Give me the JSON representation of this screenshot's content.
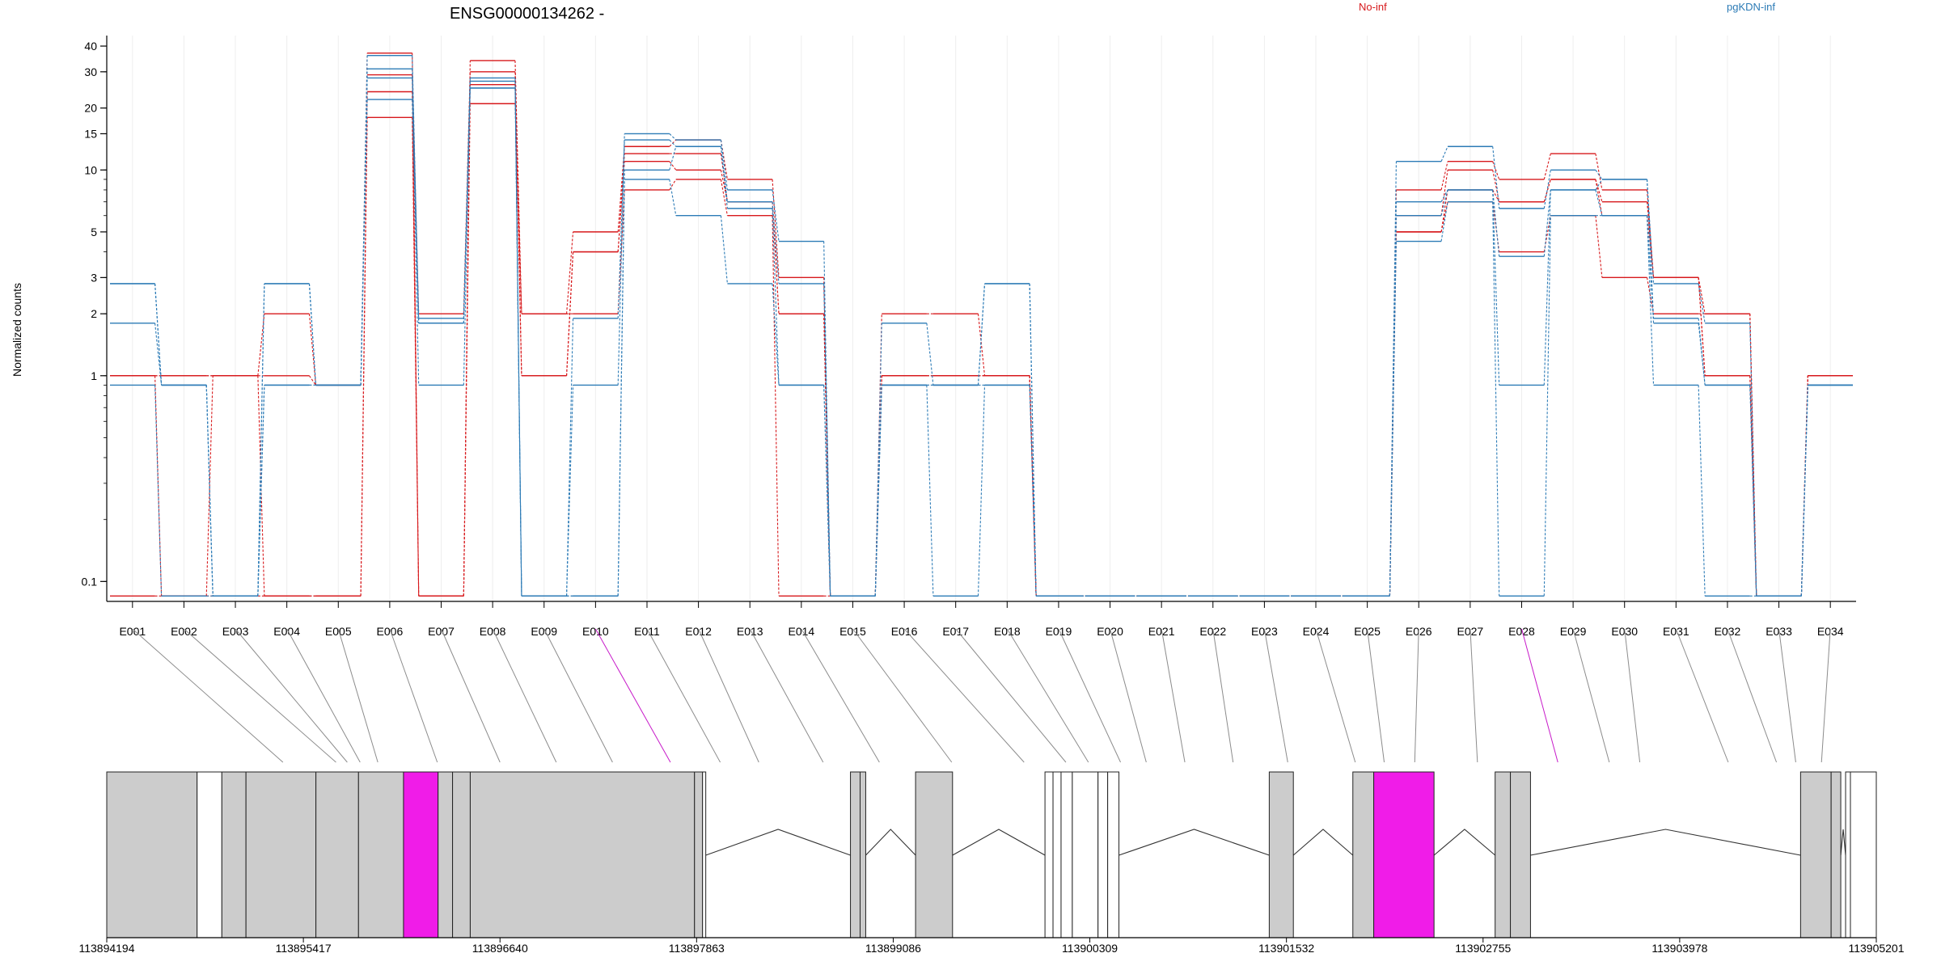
{
  "chart_data": {
    "type": "line",
    "title": "ENSG00000134262 -",
    "ylabel": "Normalized counts",
    "yscale": "log",
    "ylim": [
      0.08,
      45
    ],
    "yticks": [
      0.1,
      1,
      2,
      3,
      5,
      10,
      15,
      20,
      30,
      40
    ],
    "ytick_labels": [
      "0.1",
      "1",
      "2",
      "3",
      "5",
      "10",
      "15",
      "20",
      "30",
      "40"
    ],
    "grid": "vertical",
    "legend": [
      {
        "name": "No-inf",
        "color": "#d7191c"
      },
      {
        "name": "pgKDN-inf",
        "color": "#2c7bb6"
      }
    ],
    "categories": [
      "E001",
      "E002",
      "E003",
      "E004",
      "E005",
      "E006",
      "E007",
      "E008",
      "E009",
      "E010",
      "E011",
      "E012",
      "E013",
      "E014",
      "E015",
      "E016",
      "E017",
      "E018",
      "E019",
      "E020",
      "E021",
      "E022",
      "E023",
      "E024",
      "E025",
      "E026",
      "E027",
      "E028",
      "E029",
      "E030",
      "E031",
      "E032",
      "E033",
      "E034"
    ],
    "series": [
      {
        "group": "No-inf",
        "color": "#d7191c",
        "values": [
          1,
          1,
          1,
          2,
          0.9,
          37,
          0.085,
          34,
          2,
          5,
          13,
          14,
          9,
          3,
          0.085,
          2,
          2,
          1,
          0.085,
          0.085,
          0.085,
          0.085,
          0.085,
          0.085,
          0.085,
          8,
          11,
          9,
          12,
          8,
          3,
          2,
          0.085,
          1
        ]
      },
      {
        "group": "No-inf",
        "color": "#d7191c",
        "values": [
          1,
          1,
          1,
          1,
          0.9,
          29,
          2,
          30,
          1,
          4,
          12,
          12,
          7,
          2,
          0.085,
          1,
          1,
          1,
          0.085,
          0.085,
          0.085,
          0.085,
          0.085,
          0.085,
          0.085,
          6,
          10,
          7,
          9,
          7,
          3,
          1,
          0.085,
          1
        ]
      },
      {
        "group": "No-inf",
        "color": "#d7191c",
        "values": [
          0.085,
          0.085,
          1,
          0.085,
          0.085,
          24,
          0.085,
          26,
          1,
          4,
          11,
          10,
          7,
          2,
          0.085,
          1,
          1,
          1,
          0.085,
          0.085,
          0.085,
          0.085,
          0.085,
          0.085,
          0.085,
          5,
          8,
          7,
          9,
          6,
          3,
          1,
          0.085,
          1
        ]
      },
      {
        "group": "No-inf",
        "color": "#d7191c",
        "values": [
          1,
          0.085,
          0.085,
          0.085,
          0.085,
          18,
          0.085,
          21,
          2,
          2,
          8,
          9,
          6,
          0.085,
          0.085,
          1,
          1,
          1,
          0.085,
          0.085,
          0.085,
          0.085,
          0.085,
          0.085,
          0.085,
          5,
          7,
          4,
          6,
          3,
          2,
          2,
          0.085,
          1
        ]
      },
      {
        "group": "pgKDN-inf",
        "color": "#2c7bb6",
        "values": [
          2.8,
          0.9,
          0.085,
          2.8,
          0.9,
          36,
          1.8,
          28,
          0.085,
          0.9,
          15,
          14,
          8,
          4.5,
          0.085,
          1.8,
          0.9,
          2.8,
          0.085,
          0.085,
          0.085,
          0.085,
          0.085,
          0.085,
          0.085,
          11,
          13,
          6.5,
          10,
          9,
          2.8,
          1.8,
          0.085,
          0.9
        ]
      },
      {
        "group": "pgKDN-inf",
        "color": "#2c7bb6",
        "values": [
          2.8,
          0.9,
          0.085,
          2.8,
          0.9,
          31,
          1.9,
          27,
          0.085,
          1.9,
          14,
          13,
          7,
          2.8,
          0.085,
          0.9,
          0.9,
          2.8,
          0.085,
          0.085,
          0.085,
          0.085,
          0.085,
          0.085,
          0.085,
          7,
          8,
          3.8,
          8,
          9,
          1.9,
          0.9,
          0.085,
          0.9
        ]
      },
      {
        "group": "pgKDN-inf",
        "color": "#2c7bb6",
        "values": [
          1.8,
          0.9,
          0.085,
          0.9,
          0.9,
          28,
          0.9,
          25,
          0.085,
          0.085,
          10,
          13,
          6.5,
          0.9,
          0.085,
          0.9,
          0.9,
          0.9,
          0.085,
          0.085,
          0.085,
          0.085,
          0.085,
          0.085,
          0.085,
          6,
          8,
          0.9,
          8,
          6,
          1.8,
          0.9,
          0.085,
          0.9
        ]
      },
      {
        "group": "pgKDN-inf",
        "color": "#2c7bb6",
        "values": [
          0.9,
          0.085,
          0.085,
          0.9,
          0.9,
          22,
          1.8,
          25,
          0.085,
          0.085,
          9,
          6,
          2.8,
          0.9,
          0.085,
          0.9,
          0.085,
          0.9,
          0.085,
          0.085,
          0.085,
          0.085,
          0.085,
          0.085,
          0.085,
          4.5,
          7,
          0.085,
          6,
          6,
          0.9,
          0.085,
          0.085,
          0.9
        ]
      }
    ],
    "gene_model": {
      "coordinate_labels": [
        "113894194",
        "113895417",
        "113896640",
        "113897863",
        "113899086",
        "113900309",
        "113901532",
        "113902755",
        "113903978",
        "113905201"
      ],
      "xlim": [
        113894194,
        113905201
      ],
      "exons": [
        {
          "id": "E001",
          "start": 113894194,
          "end": 113894756,
          "fill": "#cccccc"
        },
        {
          "id": "E002",
          "start": 113894756,
          "end": 113894910,
          "fill": "#ffffff"
        },
        {
          "id": "E003",
          "start": 113894910,
          "end": 113895060,
          "fill": "#cccccc"
        },
        {
          "id": "E004",
          "start": 113895060,
          "end": 113895495,
          "fill": "#cccccc"
        },
        {
          "id": "E005",
          "start": 113895495,
          "end": 113895760,
          "fill": "#cccccc"
        },
        {
          "id": "E006",
          "start": 113895760,
          "end": 113896040,
          "fill": "#cccccc"
        },
        {
          "id": "E007",
          "start": 113896040,
          "end": 113896255,
          "fill": "#f01ce8"
        },
        {
          "id": "E008",
          "start": 113896255,
          "end": 113896345,
          "fill": "#cccccc"
        },
        {
          "id": "E009",
          "start": 113896345,
          "end": 113896455,
          "fill": "#cccccc"
        },
        {
          "id": "E010",
          "start": 113896455,
          "end": 113897850,
          "fill": "#cccccc"
        },
        {
          "id": "E011",
          "start": 113897850,
          "end": 113897900,
          "fill": "#cccccc"
        },
        {
          "id": "E012",
          "start": 113897900,
          "end": 113897920,
          "fill": "#ffffff"
        },
        {
          "id": "E013",
          "start": 113898820,
          "end": 113898880,
          "fill": "#cccccc"
        },
        {
          "id": "E014",
          "start": 113898880,
          "end": 113898915,
          "fill": "#cccccc"
        },
        {
          "id": "E015",
          "start": 113899225,
          "end": 113899455,
          "fill": "#cccccc"
        },
        {
          "id": "E016",
          "start": 113900030,
          "end": 113900080,
          "fill": "#ffffff"
        },
        {
          "id": "E017",
          "start": 113900080,
          "end": 113900130,
          "fill": "#ffffff"
        },
        {
          "id": "E018",
          "start": 113900130,
          "end": 113900200,
          "fill": "#ffffff"
        },
        {
          "id": "E019",
          "start": 113900200,
          "end": 113900360,
          "fill": "#ffffff"
        },
        {
          "id": "E020",
          "start": 113900360,
          "end": 113900420,
          "fill": "#ffffff"
        },
        {
          "id": "E021",
          "start": 113900420,
          "end": 113900490,
          "fill": "#ffffff"
        },
        {
          "id": "E022",
          "start": 113901425,
          "end": 113901575,
          "fill": "#cccccc"
        },
        {
          "id": "E023",
          "start": 113901945,
          "end": 113902075,
          "fill": "#cccccc"
        },
        {
          "id": "E024",
          "start": 113902075,
          "end": 113902450,
          "fill": "#f01ce8"
        },
        {
          "id": "E025",
          "start": 113902830,
          "end": 113902925,
          "fill": "#cccccc"
        },
        {
          "id": "E026",
          "start": 113902925,
          "end": 113903050,
          "fill": "#cccccc"
        },
        {
          "id": "E027",
          "start": 113904730,
          "end": 113904920,
          "fill": "#cccccc"
        },
        {
          "id": "E028",
          "start": 113904920,
          "end": 113904980,
          "fill": "#cccccc"
        },
        {
          "id": "E029",
          "start": 113905010,
          "end": 113905040,
          "fill": "#ffffff"
        },
        {
          "id": "E030",
          "start": 113905040,
          "end": 113905201,
          "fill": "#ffffff"
        }
      ],
      "introns": [
        [
          113897920,
          113898820
        ],
        [
          113898915,
          113899225
        ],
        [
          113899455,
          113900030
        ],
        [
          113900490,
          113901425
        ],
        [
          113901575,
          113901945
        ],
        [
          113902450,
          113902830
        ],
        [
          113903050,
          113904730
        ],
        [
          113904980,
          113905010
        ]
      ],
      "connector_bin_position": [
        113895290,
        113895620,
        113895690,
        113895770,
        113895880,
        113896250,
        113896640,
        113896990,
        113897340,
        113897700,
        113898010,
        113898250,
        113898650,
        113899000,
        113899450,
        113899900,
        113900160,
        113900300,
        113900500,
        113900660,
        113900900,
        113901200,
        113901540,
        113901960,
        113902140,
        113902330,
        113902720,
        113903220,
        113903540,
        113903730,
        113904280,
        113904580,
        113904700,
        113904860
      ],
      "highlighted_bins": [
        "E010",
        "E028"
      ]
    }
  }
}
